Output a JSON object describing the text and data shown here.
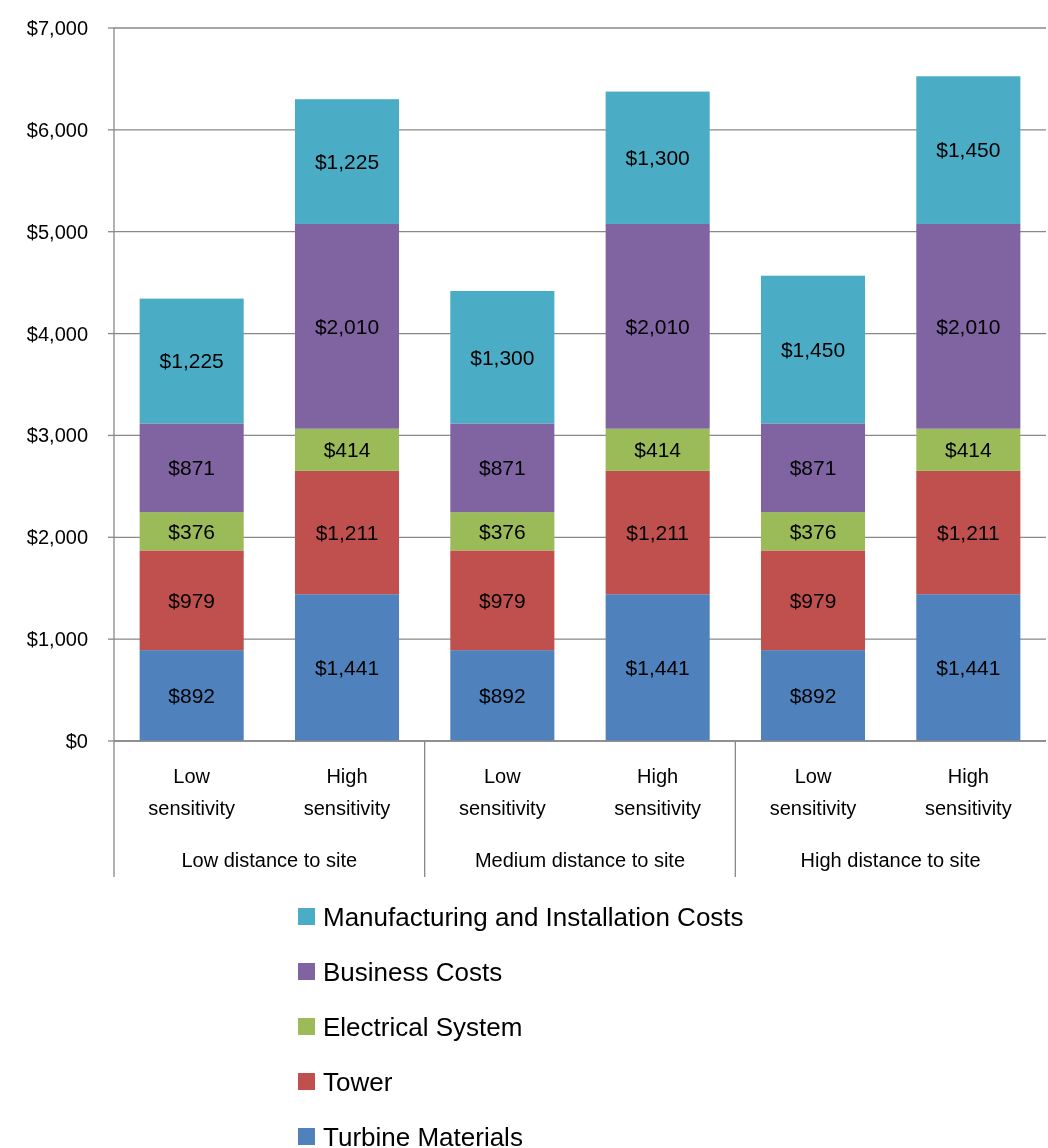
{
  "chart_data": {
    "type": "bar",
    "stacked": true,
    "categories": [
      "Low sensitivity",
      "High sensitivity",
      "Low sensitivity",
      "High sensitivity",
      "Low sensitivity",
      "High sensitivity"
    ],
    "annotations": [
      "Low distance to site",
      "Medium distance to site",
      "High distance to site"
    ],
    "series": [
      {
        "name": "Turbine Materials",
        "color": "#4f81bd",
        "values": [
          892,
          1441,
          892,
          1441,
          892,
          1441
        ],
        "value_labels": [
          "$892",
          "$1,441",
          "$892",
          "$1,441",
          "$892",
          "$1,441"
        ]
      },
      {
        "name": "Tower",
        "color": "#c0504d",
        "values": [
          979,
          1211,
          979,
          1211,
          979,
          1211
        ],
        "value_labels": [
          "$979",
          "$1,211",
          "$979",
          "$1,211",
          "$979",
          "$1,211"
        ]
      },
      {
        "name": "Electrical System",
        "color": "#9bbb59",
        "values": [
          376,
          414,
          376,
          414,
          376,
          414
        ],
        "value_labels": [
          "$376",
          "$414",
          "$376",
          "$414",
          "$376",
          "$414"
        ]
      },
      {
        "name": "Business Costs",
        "color": "#8064a2",
        "values": [
          871,
          2010,
          871,
          2010,
          871,
          2010
        ],
        "value_labels": [
          "$871",
          "$2,010",
          "$871",
          "$2,010",
          "$871",
          "$2,010"
        ]
      },
      {
        "name": "Manufacturing and Installation Costs",
        "color": "#4bacc6",
        "values": [
          1225,
          1225,
          1300,
          1300,
          1450,
          1450
        ],
        "value_labels": [
          "$1,225",
          "$1,225",
          "$1,300",
          "$1,300",
          "$1,450",
          "$1,450"
        ]
      }
    ],
    "ylim": [
      0,
      7000
    ],
    "yticks": [
      {
        "value": 0,
        "label": "$0"
      },
      {
        "value": 1000,
        "label": "$1,000"
      },
      {
        "value": 2000,
        "label": "$2,000"
      },
      {
        "value": 3000,
        "label": "$3,000"
      },
      {
        "value": 4000,
        "label": "$4,000"
      },
      {
        "value": 5000,
        "label": "$5,000"
      },
      {
        "value": 6000,
        "label": "$6,000"
      },
      {
        "value": 7000,
        "label": "$7,000"
      }
    ],
    "grid": "y",
    "legend": "bottom"
  }
}
